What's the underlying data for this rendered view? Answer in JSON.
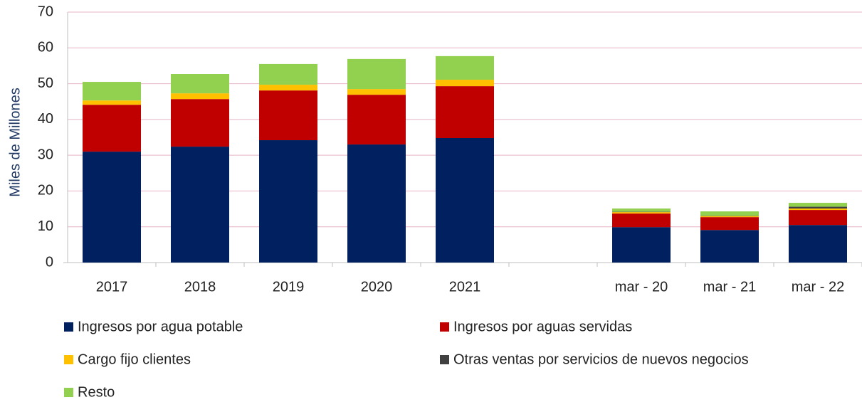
{
  "chart_data": {
    "type": "bar",
    "stacked": true,
    "y_label": "Miles de Millones",
    "categories": [
      "2017",
      "2018",
      "2019",
      "2020",
      "2021",
      null,
      "mar - 20",
      "mar - 21",
      "mar - 22"
    ],
    "series": [
      {
        "name": "Ingresos por agua potable",
        "color": "#002060",
        "values": [
          31.0,
          32.4,
          34.2,
          33.0,
          34.8,
          null,
          9.9,
          9.1,
          10.5
        ]
      },
      {
        "name": "Ingresos por aguas servidas",
        "color": "#c00000",
        "values": [
          13.1,
          13.3,
          13.9,
          13.9,
          14.5,
          null,
          3.8,
          3.6,
          4.2
        ]
      },
      {
        "name": "Cargo fijo clientes",
        "color": "#ffc000",
        "values": [
          1.2,
          1.6,
          1.6,
          1.6,
          1.8,
          null,
          0.4,
          0.3,
          0.4
        ]
      },
      {
        "name": "Otras ventas por servicios de nuevos negocios",
        "color": "#404040",
        "values": [
          0,
          0,
          0,
          0,
          0,
          null,
          0.1,
          0.1,
          0.5
        ]
      },
      {
        "name": "Resto",
        "color": "#92d050",
        "values": [
          5.2,
          5.4,
          5.8,
          8.4,
          6.6,
          null,
          0.9,
          1.2,
          1.1
        ]
      }
    ],
    "ylim": [
      0,
      70
    ],
    "yticks": [
      0,
      10,
      20,
      30,
      40,
      50,
      60,
      70
    ],
    "grid": true,
    "legend": "bottom"
  }
}
